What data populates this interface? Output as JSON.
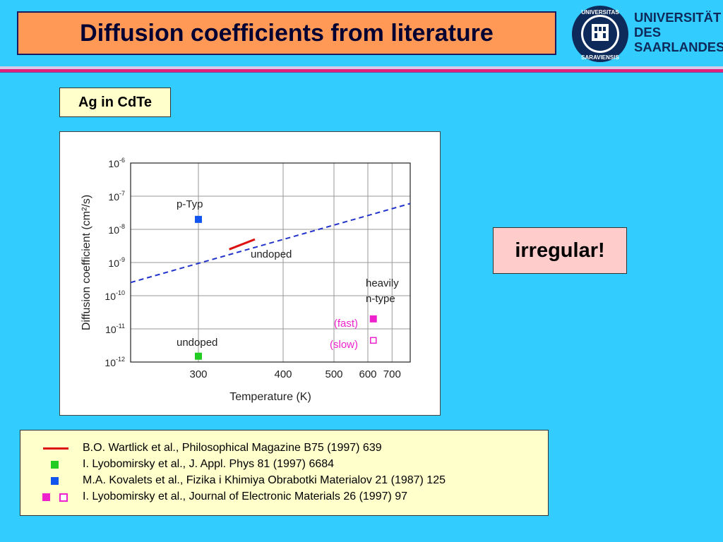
{
  "slide": {
    "title": "Diffusion coefficients from literature",
    "subtitle": "Ag in CdTe",
    "note": "irregular!"
  },
  "logo": {
    "line1": "UNIVERSITÄT",
    "line2": "DES",
    "line3": "SAARLANDES",
    "seal_text": "UNIVERSITAS SARAVIENSIS"
  },
  "references": [
    {
      "marker": "red-line",
      "color": "#dd1111",
      "text": "B.O. Wartlick et al., Philosophical Magazine B75 (1997) 639"
    },
    {
      "marker": "green-square",
      "color": "#22cc22",
      "text": "I. Lyobomirsky et al., J. Appl. Phys 81 (1997) 6684"
    },
    {
      "marker": "blue-square",
      "color": "#1155ee",
      "text": "M.A. Kovalets et al., Fizika i Khimiya Obrabotki Materialov 21 (1987) 125"
    },
    {
      "marker": "magenta-filled-and-open-square",
      "color": "#ee22cc",
      "text": "I. Lyobomirsky et al., Journal of Electronic Materials 26 (1997) 97"
    }
  ],
  "chart_data": {
    "type": "line",
    "title": "",
    "xlabel": "Temperature (K)",
    "ylabel": "Diffusion coefficient (cm²/s)",
    "x_scale": "reciprocal",
    "y_scale": "log",
    "xlim": [
      250,
      800
    ],
    "ylim": [
      1e-12,
      1e-06
    ],
    "x_ticks": [
      300,
      400,
      500,
      600,
      700
    ],
    "x_tick_labels": [
      "300",
      "400",
      "500",
      "600",
      "700"
    ],
    "y_ticks": [
      1e-12,
      1e-11,
      1e-10,
      1e-09,
      1e-08,
      1e-07,
      1e-06
    ],
    "y_tick_labels": [
      {
        "base": "10",
        "exp": "-12"
      },
      {
        "base": "10",
        "exp": "-11"
      },
      {
        "base": "10",
        "exp": "-10"
      },
      {
        "base": "10",
        "exp": "-9"
      },
      {
        "base": "10",
        "exp": "-8"
      },
      {
        "base": "10",
        "exp": "-7"
      },
      {
        "base": "10",
        "exp": "-6"
      }
    ],
    "grid": true,
    "series": [
      {
        "style": "dashed",
        "color": "#2233cc",
        "x": [
          250,
          800
        ],
        "y": [
          2.5e-10,
          6e-08
        ]
      },
      {
        "style": "solid",
        "color": "#dd1111",
        "x": [
          330,
          360
        ],
        "y": [
          2.5e-09,
          5e-09
        ]
      },
      {
        "style": "point",
        "marker": "square-filled",
        "color": "#1155ee",
        "x": [
          300
        ],
        "y": [
          2e-08
        ]
      },
      {
        "style": "point",
        "marker": "square-filled",
        "color": "#22cc22",
        "x": [
          300
        ],
        "y": [
          1.5e-12
        ]
      },
      {
        "style": "point",
        "marker": "square-filled",
        "color": "#ee22cc",
        "x": [
          620
        ],
        "y": [
          2e-11
        ]
      },
      {
        "style": "point",
        "marker": "square-open",
        "color": "#ee22cc",
        "x": [
          620
        ],
        "y": [
          4.5e-12
        ]
      }
    ],
    "annotations": [
      {
        "text": "p-Typ",
        "color": "#222222"
      },
      {
        "text": "undoped",
        "color": "#222222"
      },
      {
        "text": "undoped",
        "color": "#222222"
      },
      {
        "text": "heavily",
        "color": "#222222"
      },
      {
        "text": "n-type",
        "color": "#222222"
      },
      {
        "text": "(fast)",
        "color": "#ee22cc"
      },
      {
        "text": "(slow)",
        "color": "#ee22cc"
      }
    ]
  }
}
